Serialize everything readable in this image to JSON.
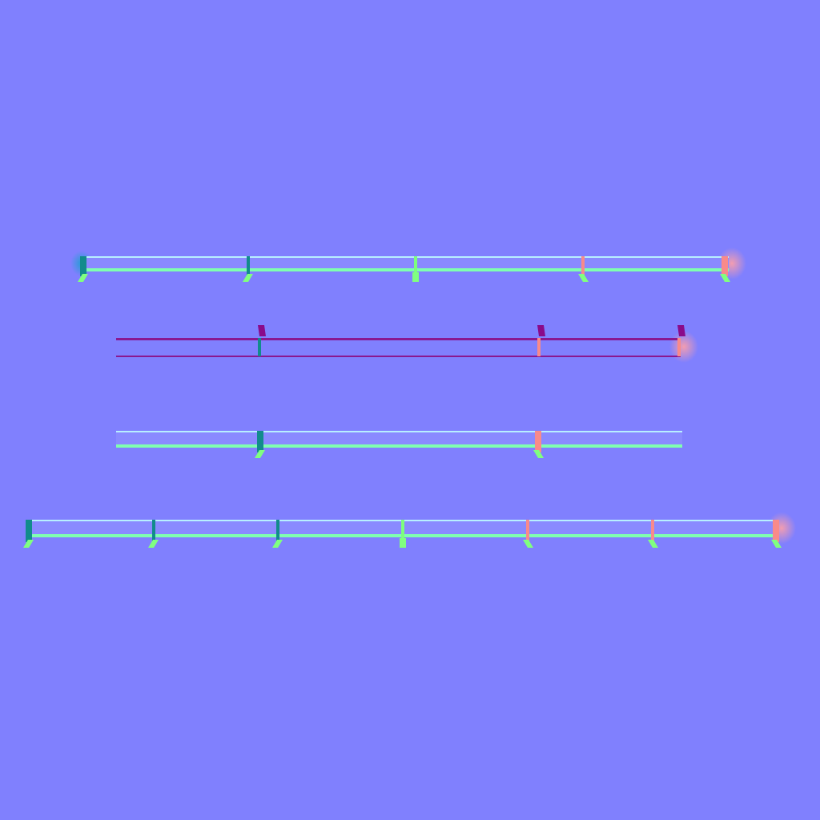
{
  "image": {
    "description_kind": "normal-map texture of rail / fence segments",
    "background": "#8080fe"
  },
  "colors": {
    "rail_face_top": "#a8a8ff",
    "rail_edge_light": "#7fffb0",
    "rail_edge_dark": "#5ad4a0",
    "rail_inner": "#8a8aff",
    "post_left": "#128b8c",
    "post_right": "#f88a8a",
    "post_center": "#7dff7d",
    "foot_light": "#80ff80",
    "purple_line": "#8a1890",
    "purple_cap": "#8a0a8a",
    "glow_left": "#1aa0d0",
    "glow_right": "#ffa0a8"
  },
  "rails": [
    {
      "id": "rail-1",
      "style": "green",
      "posts": [
        "left",
        "left",
        "center",
        "right",
        "right"
      ],
      "end_glow": true
    },
    {
      "id": "rail-2",
      "style": "purple",
      "posts": [
        "left",
        "right",
        "right"
      ],
      "end_glow": true
    },
    {
      "id": "rail-3",
      "style": "green",
      "posts": [
        "left",
        "right"
      ],
      "end_glow": false
    },
    {
      "id": "rail-4",
      "style": "green",
      "posts": [
        "left",
        "left",
        "left",
        "center",
        "right",
        "right",
        "right"
      ],
      "end_glow": true
    }
  ]
}
